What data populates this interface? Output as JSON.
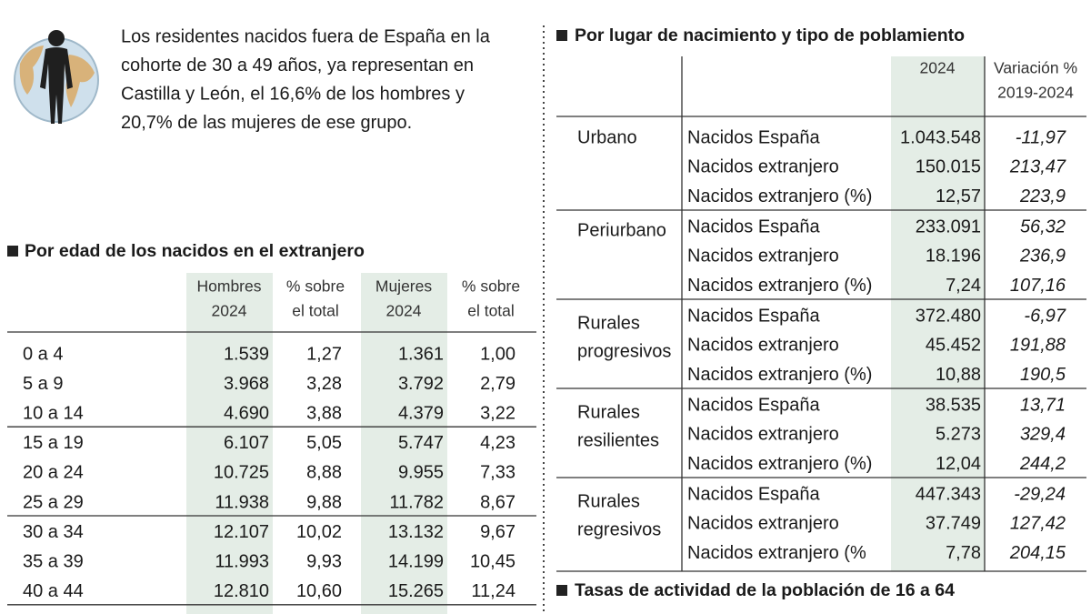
{
  "intro": [
    "Los residentes nacidos fuera de España en la",
    "cohorte de 30 a 49 años, ya representan en",
    "Castilla y León, el 16,6% de los hombres y",
    "20,7% de las mujeres de ese grupo."
  ],
  "age_table": {
    "title": "Por edad de los nacidos en el extranjero",
    "columns": [
      [
        "Hombres",
        "2024"
      ],
      [
        "% sobre",
        "el total"
      ],
      [
        "Mujeres",
        "2024"
      ],
      [
        "% sobre",
        "el total"
      ]
    ],
    "rows": [
      [
        "0 a 4",
        "1.539",
        "1,27",
        "1.361",
        "1,00"
      ],
      [
        "5 a 9",
        "3.968",
        "3,28",
        "3.792",
        "2,79"
      ],
      [
        "10 a 14",
        "4.690",
        "3,88",
        "4.379",
        "3,22"
      ],
      [
        "15 a 19",
        "6.107",
        "5,05",
        "5.747",
        "4,23"
      ],
      [
        "20 a 24",
        "10.725",
        "8,88",
        "9.955",
        "7,33"
      ],
      [
        "25 a 29",
        "11.938",
        "9,88",
        "11.782",
        "8,67"
      ],
      [
        "30 a 34",
        "12.107",
        "10,02",
        "13.132",
        "9,67"
      ],
      [
        "35 a 39",
        "11.993",
        "9,93",
        "14.199",
        "10,45"
      ],
      [
        "40 a 44",
        "12.810",
        "10,60",
        "15.265",
        "11,24"
      ]
    ]
  },
  "place_table": {
    "title": "Por lugar de nacimiento y tipo de poblamiento",
    "columns": [
      [
        "2024"
      ],
      [
        "Variación %",
        "2019-2024"
      ]
    ],
    "groups": [
      {
        "label": [
          "Urbano"
        ],
        "rows": [
          [
            "Nacidos España",
            "1.043.548",
            "-11,97"
          ],
          [
            "Nacidos extranjero",
            "150.015",
            "213,47"
          ],
          [
            "Nacidos extranjero (%)",
            "12,57",
            "223,9"
          ]
        ]
      },
      {
        "label": [
          "Periurbano"
        ],
        "rows": [
          [
            "Nacidos España",
            "233.091",
            "56,32"
          ],
          [
            "Nacidos extranjero",
            "18.196",
            "236,9"
          ],
          [
            "Nacidos extranjero (%)",
            "7,24",
            "107,16"
          ]
        ]
      },
      {
        "label": [
          "Rurales",
          "progresivos"
        ],
        "rows": [
          [
            "Nacidos España",
            "372.480",
            "-6,97"
          ],
          [
            "Nacidos extranjero",
            "45.452",
            "191,88"
          ],
          [
            "Nacidos extranjero (%)",
            "10,88",
            "190,5"
          ]
        ]
      },
      {
        "label": [
          "Rurales",
          "resilientes"
        ],
        "rows": [
          [
            "Nacidos España",
            "38.535",
            "13,71"
          ],
          [
            "Nacidos extranjero",
            "5.273",
            "329,4"
          ],
          [
            "Nacidos extranjero (%)",
            "12,04",
            "244,2"
          ]
        ]
      },
      {
        "label": [
          "Rurales",
          "regresivos"
        ],
        "rows": [
          [
            "Nacidos España",
            "447.343",
            "-29,24"
          ],
          [
            "Nacidos extranjero",
            "37.749",
            "127,42"
          ],
          [
            "Nacidos extranjero (%",
            "7,78",
            "204,15"
          ]
        ]
      }
    ]
  },
  "next_section": {
    "title": "Tasas de actividad de la población de 16 a 64"
  }
}
